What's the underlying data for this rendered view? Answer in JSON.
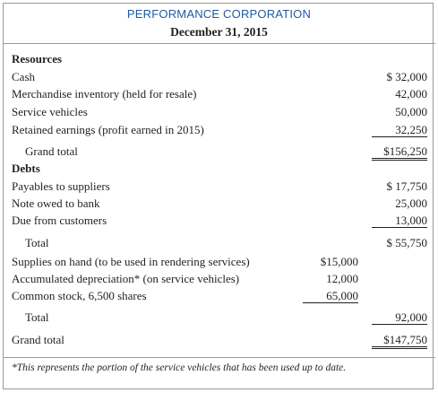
{
  "header": {
    "company": "PERFORMANCE CORPORATION",
    "date": "December 31, 2015"
  },
  "table": {
    "rows": [
      {
        "label": "Resources"
      },
      {
        "label": "Cash",
        "outer": "$ 32,000"
      },
      {
        "label": "Merchandise inventory (held for resale)",
        "outer": "42,000"
      },
      {
        "label": "Service vehicles",
        "outer": "50,000"
      },
      {
        "label": "Retained earnings (profit earned in 2015)",
        "outer": "32,250"
      },
      {
        "label": "Grand total",
        "outer": "$156,250"
      },
      {
        "label": "Debts"
      },
      {
        "label": "Payables to suppliers",
        "outer": "$ 17,750"
      },
      {
        "label": "Note owed to bank",
        "outer": "25,000"
      },
      {
        "label": "Due from customers",
        "outer": "13,000"
      },
      {
        "label": "Total",
        "outer": "$ 55,750"
      },
      {
        "label": "Supplies on hand (to be used in rendering services)",
        "inner": "$15,000"
      },
      {
        "label": "Accumulated depreciation* (on service vehicles)",
        "inner": "12,000"
      },
      {
        "label": "Common stock, 6,500 shares",
        "inner": "65,000"
      },
      {
        "label": "Total",
        "outer": "92,000"
      },
      {
        "label": "Grand total",
        "outer": "$147,750"
      }
    ]
  },
  "footnote": "*This represents the portion of the service vehicles that has been used up to date."
}
